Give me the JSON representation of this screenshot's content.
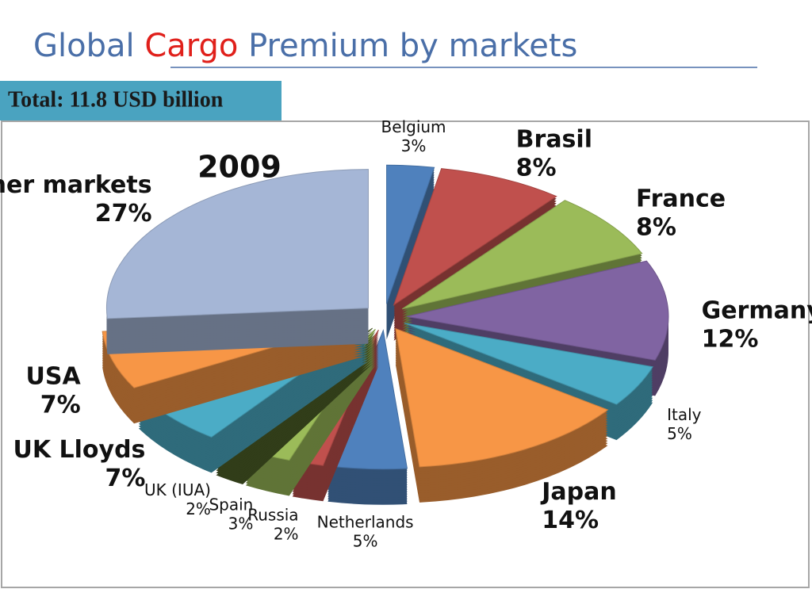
{
  "chart_data": {
    "type": "pie",
    "title": "Global Cargo Premium by markets",
    "subtitle": "Total: 11.8 USD billion",
    "annotation": "2009",
    "categories": [
      "Belgium",
      "Brasil",
      "France",
      "Germany",
      "Italy",
      "Japan",
      "Netherlands",
      "Russia",
      "Spain",
      "UK (IUA)",
      "UK Lloyds",
      "USA",
      "Other markets"
    ],
    "values": [
      3,
      8,
      8,
      12,
      5,
      14,
      5,
      2,
      3,
      2,
      7,
      7,
      27
    ],
    "value_labels": [
      "3%",
      "8%",
      "8%",
      "12%",
      "5%",
      "14%",
      "5%",
      "2%",
      "3%",
      "2%",
      "7%",
      "7%",
      "27%"
    ],
    "colors": [
      "#4f81bd",
      "#c0504d",
      "#9bbb59",
      "#8064a2",
      "#4bacc6",
      "#f79646",
      "#4f81bd",
      "#c0504d",
      "#9bbb59",
      "#4f6228",
      "#4bacc6",
      "#f79646",
      "#a5b6d6"
    ]
  }
}
